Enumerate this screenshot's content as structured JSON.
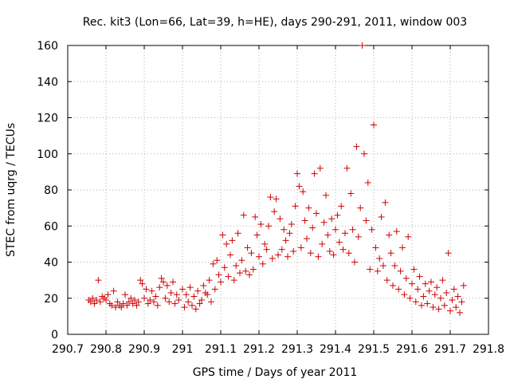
{
  "chart_data": {
    "type": "scatter",
    "title": "Rec. kit3 (Lon=66, Lat=39, h=HE), days 290-291, 2011, window 003",
    "xlabel": "GPS time / Days of year 2011",
    "ylabel": "STEC from uqrg / TECUs",
    "xlim": [
      290.7,
      291.8
    ],
    "ylim": [
      0,
      160
    ],
    "x_ticks": [
      290.7,
      290.8,
      290.9,
      291.0,
      291.1,
      291.2,
      291.3,
      291.4,
      291.5,
      291.6,
      291.7,
      291.8
    ],
    "x_tick_labels": [
      "290.7",
      "290.8",
      "290.9",
      "291",
      "291.1",
      "291.2",
      "291.3",
      "291.4",
      "291.5",
      "291.6",
      "291.7",
      "291.8"
    ],
    "y_ticks": [
      0,
      20,
      40,
      60,
      80,
      100,
      120,
      140,
      160
    ],
    "y_tick_labels": [
      "0",
      "20",
      "40",
      "60",
      "80",
      "100",
      "120",
      "140",
      "160"
    ],
    "grid": true,
    "marker": "+",
    "series": [
      {
        "name": "STEC",
        "color": "#cc0000",
        "points": [
          [
            290.755,
            19
          ],
          [
            290.76,
            18
          ],
          [
            290.765,
            20
          ],
          [
            290.77,
            17
          ],
          [
            290.775,
            19
          ],
          [
            290.78,
            30
          ],
          [
            290.785,
            18
          ],
          [
            290.79,
            21
          ],
          [
            290.795,
            20
          ],
          [
            290.8,
            19
          ],
          [
            290.805,
            22
          ],
          [
            290.81,
            17
          ],
          [
            290.815,
            16
          ],
          [
            290.82,
            24
          ],
          [
            290.825,
            15
          ],
          [
            290.83,
            18
          ],
          [
            290.835,
            16
          ],
          [
            290.84,
            15
          ],
          [
            290.845,
            17
          ],
          [
            290.85,
            22
          ],
          [
            290.855,
            16
          ],
          [
            290.86,
            18
          ],
          [
            290.865,
            20
          ],
          [
            290.87,
            17
          ],
          [
            290.875,
            19
          ],
          [
            290.88,
            16
          ],
          [
            290.885,
            18
          ],
          [
            290.89,
            30
          ],
          [
            290.895,
            28
          ],
          [
            290.9,
            20
          ],
          [
            290.905,
            25
          ],
          [
            290.91,
            17
          ],
          [
            290.915,
            19
          ],
          [
            290.92,
            24
          ],
          [
            290.925,
            18
          ],
          [
            290.93,
            21
          ],
          [
            290.935,
            16
          ],
          [
            290.94,
            26
          ],
          [
            290.945,
            31
          ],
          [
            290.95,
            29
          ],
          [
            290.955,
            20
          ],
          [
            290.96,
            27
          ],
          [
            290.965,
            18
          ],
          [
            290.97,
            23
          ],
          [
            290.975,
            29
          ],
          [
            290.98,
            17
          ],
          [
            290.985,
            22
          ],
          [
            290.99,
            19
          ],
          [
            291.0,
            25
          ],
          [
            291.005,
            15
          ],
          [
            291.01,
            22
          ],
          [
            291.015,
            18
          ],
          [
            291.02,
            26
          ],
          [
            291.025,
            16
          ],
          [
            291.03,
            21
          ],
          [
            291.035,
            14
          ],
          [
            291.04,
            24
          ],
          [
            291.045,
            17
          ],
          [
            291.05,
            19
          ],
          [
            291.055,
            27
          ],
          [
            291.06,
            23
          ],
          [
            291.065,
            22
          ],
          [
            291.07,
            30
          ],
          [
            291.075,
            18
          ],
          [
            291.08,
            39
          ],
          [
            291.085,
            25
          ],
          [
            291.09,
            41
          ],
          [
            291.095,
            33
          ],
          [
            291.1,
            29
          ],
          [
            291.105,
            55
          ],
          [
            291.11,
            37
          ],
          [
            291.115,
            50
          ],
          [
            291.12,
            32
          ],
          [
            291.125,
            44
          ],
          [
            291.13,
            52
          ],
          [
            291.135,
            30
          ],
          [
            291.14,
            38
          ],
          [
            291.145,
            56
          ],
          [
            291.15,
            34
          ],
          [
            291.155,
            41
          ],
          [
            291.16,
            66
          ],
          [
            291.165,
            35
          ],
          [
            291.17,
            48
          ],
          [
            291.175,
            33
          ],
          [
            291.18,
            45
          ],
          [
            291.185,
            36
          ],
          [
            291.19,
            65
          ],
          [
            291.195,
            55
          ],
          [
            291.2,
            43
          ],
          [
            291.205,
            61
          ],
          [
            291.21,
            39
          ],
          [
            291.215,
            50
          ],
          [
            291.22,
            47
          ],
          [
            291.225,
            60
          ],
          [
            291.23,
            76
          ],
          [
            291.235,
            42
          ],
          [
            291.24,
            68
          ],
          [
            291.245,
            75
          ],
          [
            291.25,
            44
          ],
          [
            291.255,
            64
          ],
          [
            291.26,
            47
          ],
          [
            291.265,
            58
          ],
          [
            291.27,
            52
          ],
          [
            291.275,
            43
          ],
          [
            291.28,
            56
          ],
          [
            291.285,
            61
          ],
          [
            291.29,
            46
          ],
          [
            291.295,
            71
          ],
          [
            291.3,
            89
          ],
          [
            291.305,
            82
          ],
          [
            291.31,
            48
          ],
          [
            291.315,
            79
          ],
          [
            291.32,
            63
          ],
          [
            291.325,
            53
          ],
          [
            291.33,
            70
          ],
          [
            291.335,
            45
          ],
          [
            291.34,
            59
          ],
          [
            291.345,
            89
          ],
          [
            291.35,
            67
          ],
          [
            291.355,
            43
          ],
          [
            291.36,
            92
          ],
          [
            291.365,
            50
          ],
          [
            291.37,
            62
          ],
          [
            291.375,
            77
          ],
          [
            291.38,
            55
          ],
          [
            291.385,
            46
          ],
          [
            291.39,
            64
          ],
          [
            291.395,
            44
          ],
          [
            291.4,
            58
          ],
          [
            291.405,
            66
          ],
          [
            291.41,
            51
          ],
          [
            291.415,
            71
          ],
          [
            291.42,
            47
          ],
          [
            291.425,
            56
          ],
          [
            291.43,
            92
          ],
          [
            291.435,
            45
          ],
          [
            291.44,
            78
          ],
          [
            291.445,
            58
          ],
          [
            291.45,
            40
          ],
          [
            291.455,
            104
          ],
          [
            291.46,
            54
          ],
          [
            291.465,
            70
          ],
          [
            291.47,
            160
          ],
          [
            291.475,
            100
          ],
          [
            291.48,
            63
          ],
          [
            291.485,
            84
          ],
          [
            291.49,
            36
          ],
          [
            291.495,
            58
          ],
          [
            291.5,
            116
          ],
          [
            291.505,
            48
          ],
          [
            291.51,
            35
          ],
          [
            291.515,
            42
          ],
          [
            291.52,
            65
          ],
          [
            291.525,
            38
          ],
          [
            291.53,
            73
          ],
          [
            291.535,
            30
          ],
          [
            291.54,
            55
          ],
          [
            291.545,
            45
          ],
          [
            291.55,
            27
          ],
          [
            291.555,
            38
          ],
          [
            291.56,
            57
          ],
          [
            291.565,
            25
          ],
          [
            291.57,
            35
          ],
          [
            291.575,
            48
          ],
          [
            291.58,
            22
          ],
          [
            291.585,
            31
          ],
          [
            291.59,
            54
          ],
          [
            291.595,
            20
          ],
          [
            291.6,
            28
          ],
          [
            291.605,
            36
          ],
          [
            291.61,
            18
          ],
          [
            291.615,
            25
          ],
          [
            291.62,
            32
          ],
          [
            291.625,
            16
          ],
          [
            291.63,
            21
          ],
          [
            291.635,
            28
          ],
          [
            291.64,
            17
          ],
          [
            291.645,
            24
          ],
          [
            291.65,
            29
          ],
          [
            291.655,
            15
          ],
          [
            291.66,
            22
          ],
          [
            291.665,
            26
          ],
          [
            291.67,
            14
          ],
          [
            291.675,
            20
          ],
          [
            291.68,
            30
          ],
          [
            291.685,
            16
          ],
          [
            291.69,
            23
          ],
          [
            291.695,
            45
          ],
          [
            291.7,
            13
          ],
          [
            291.705,
            19
          ],
          [
            291.71,
            25
          ],
          [
            291.715,
            15
          ],
          [
            291.72,
            21
          ],
          [
            291.725,
            12
          ],
          [
            291.73,
            18
          ],
          [
            291.735,
            27
          ]
        ]
      }
    ]
  }
}
